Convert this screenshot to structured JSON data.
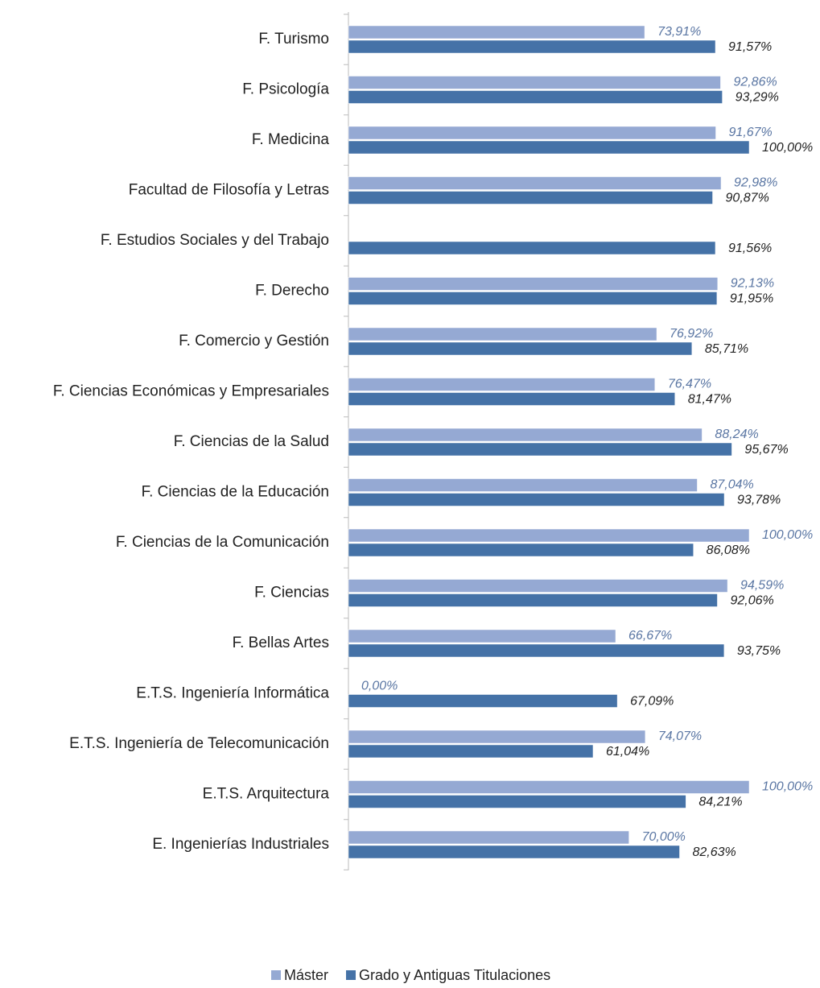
{
  "chart_data": {
    "type": "bar",
    "orientation": "horizontal",
    "categories": [
      "F. Turismo",
      "F. Psicología",
      "F. Medicina",
      "Facultad de Filosofía y Letras",
      "F. Estudios Sociales y del Trabajo",
      "F. Derecho",
      "F. Comercio y Gestión",
      "F. Ciencias Económicas y Empresariales",
      "F. Ciencias de la Salud",
      "F. Ciencias de la Educación",
      "F. Ciencias de la Comunicación",
      "F. Ciencias",
      "F. Bellas Artes",
      "E.T.S. Ingeniería Informática",
      "E.T.S. Ingeniería de Telecomunicación",
      "E.T.S. Arquitectura",
      "E. Ingenierías Industriales"
    ],
    "series": [
      {
        "name": "Máster",
        "color": "#95a9d3",
        "label_color": "#5a76a3",
        "values": [
          73.91,
          92.86,
          91.67,
          92.98,
          null,
          92.13,
          76.92,
          76.47,
          88.24,
          87.04,
          100.0,
          94.59,
          66.67,
          0.0,
          74.07,
          100.0,
          70.0
        ],
        "value_labels": [
          "73,91%",
          "92,86%",
          "91,67%",
          "92,98%",
          null,
          "92,13%",
          "76,92%",
          "76,47%",
          "88,24%",
          "87,04%",
          "100,00%",
          "94,59%",
          "66,67%",
          "0,00%",
          "74,07%",
          "100,00%",
          "70,00%"
        ]
      },
      {
        "name": "Grado y Antiguas Titulaciones",
        "color": "#4572a7",
        "label_color": "#222222",
        "values": [
          91.57,
          93.29,
          100.0,
          90.87,
          91.56,
          91.95,
          85.71,
          81.47,
          95.67,
          93.78,
          86.08,
          92.06,
          93.75,
          67.09,
          61.04,
          84.21,
          82.63
        ],
        "value_labels": [
          "91,57%",
          "93,29%",
          "100,00%",
          "90,87%",
          "91,56%",
          "91,95%",
          "85,71%",
          "81,47%",
          "95,67%",
          "93,78%",
          "86,08%",
          "92,06%",
          "93,75%",
          "67,09%",
          "61,04%",
          "84,21%",
          "82,63%"
        ]
      }
    ],
    "xlim": [
      0,
      100
    ],
    "legend": "bottom"
  }
}
